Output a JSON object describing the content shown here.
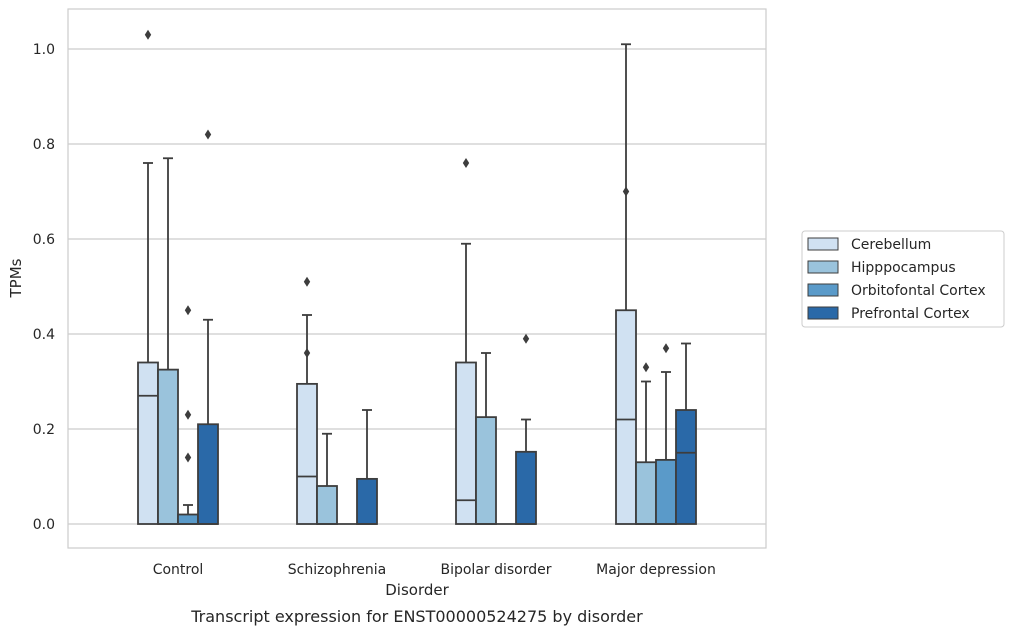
{
  "chart_data": {
    "type": "boxplot",
    "caption": "Transcript expression for ENST00000524275 by disorder",
    "xlabel": "Disorder",
    "ylabel": "TPMs",
    "ylim": [
      -0.05,
      1.08
    ],
    "yticks": [
      0.0,
      0.2,
      0.4,
      0.6,
      0.8,
      1.0
    ],
    "ytick_labels": [
      "0.0",
      "0.2",
      "0.4",
      "0.6",
      "0.8",
      "1.0"
    ],
    "grid": true,
    "legend_position": "right",
    "categories": [
      "Control",
      "Schizophrenia",
      "Bipolar disorder",
      "Major depression"
    ],
    "series": [
      {
        "name": "Cerebellum",
        "color": "#d0e1f2",
        "boxes": [
          {
            "min": 0.0,
            "q1": 0.0,
            "median": 0.27,
            "q3": 0.34,
            "max": 0.76,
            "outliers": [
              1.03
            ]
          },
          {
            "min": 0.0,
            "q1": 0.0,
            "median": 0.1,
            "q3": 0.295,
            "max": 0.44,
            "outliers": [
              0.51,
              0.36
            ]
          },
          {
            "min": 0.0,
            "q1": 0.0,
            "median": 0.05,
            "q3": 0.34,
            "max": 0.59,
            "outliers": [
              0.76
            ]
          },
          {
            "min": 0.0,
            "q1": 0.0,
            "median": 0.22,
            "q3": 0.45,
            "max": 1.01,
            "outliers": [
              0.7
            ]
          }
        ]
      },
      {
        "name": "Hipppocampus",
        "color": "#9ac3dc",
        "boxes": [
          {
            "min": 0.0,
            "q1": 0.0,
            "median": 0.0,
            "q3": 0.325,
            "max": 0.77,
            "outliers": []
          },
          {
            "min": 0.0,
            "q1": 0.0,
            "median": 0.0,
            "q3": 0.08,
            "max": 0.19,
            "outliers": []
          },
          {
            "min": 0.0,
            "q1": 0.0,
            "median": 0.0,
            "q3": 0.225,
            "max": 0.36,
            "outliers": []
          },
          {
            "min": 0.0,
            "q1": 0.0,
            "median": 0.0,
            "q3": 0.13,
            "max": 0.3,
            "outliers": [
              0.33
            ]
          }
        ]
      },
      {
        "name": "Orbitofontal Cortex",
        "color": "#5a9ac9",
        "boxes": [
          {
            "min": 0.0,
            "q1": 0.0,
            "median": 0.0,
            "q3": 0.02,
            "max": 0.04,
            "outliers": [
              0.45,
              0.23,
              0.14
            ]
          },
          {
            "min": 0.0,
            "q1": 0.0,
            "median": 0.0,
            "q3": 0.0,
            "max": 0.0,
            "outliers": []
          },
          {
            "min": 0.0,
            "q1": 0.0,
            "median": 0.0,
            "q3": 0.0,
            "max": 0.0,
            "outliers": []
          },
          {
            "min": 0.0,
            "q1": 0.0,
            "median": 0.0,
            "q3": 0.135,
            "max": 0.32,
            "outliers": [
              0.37
            ]
          }
        ]
      },
      {
        "name": "Prefrontal Cortex",
        "color": "#2a69a8",
        "boxes": [
          {
            "min": 0.0,
            "q1": 0.0,
            "median": 0.0,
            "q3": 0.21,
            "max": 0.43,
            "outliers": [
              0.82
            ]
          },
          {
            "min": 0.0,
            "q1": 0.0,
            "median": 0.0,
            "q3": 0.095,
            "max": 0.24,
            "outliers": []
          },
          {
            "min": 0.0,
            "q1": 0.0,
            "median": 0.0,
            "q3": 0.152,
            "max": 0.22,
            "outliers": [
              0.39
            ]
          },
          {
            "min": 0.0,
            "q1": 0.0,
            "median": 0.15,
            "q3": 0.24,
            "max": 0.38,
            "outliers": []
          }
        ]
      }
    ]
  }
}
